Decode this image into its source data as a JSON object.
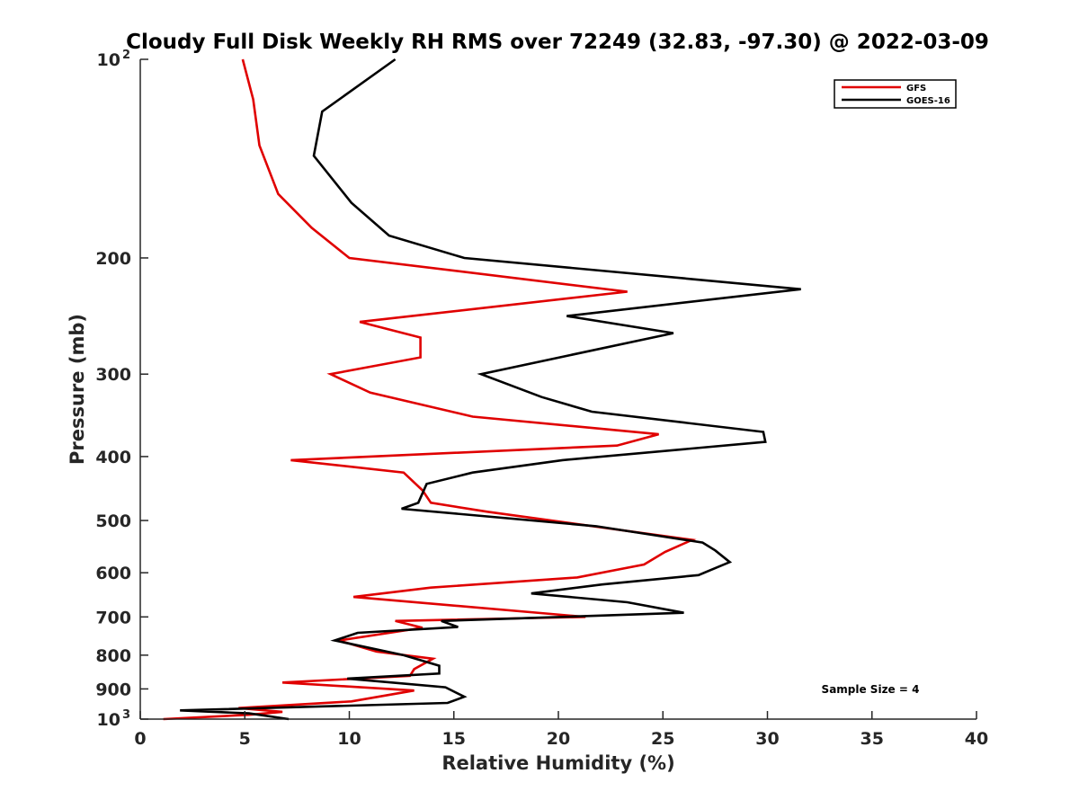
{
  "chart_data": {
    "type": "line",
    "title": "Cloudy Full Disk Weekly RH RMS over 72249 (32.83, -97.30) @ 2022-03-09",
    "xlabel": "Relative Humidity (%)",
    "ylabel": "Pressure (mb)",
    "xlim": [
      0,
      40
    ],
    "ylim": [
      1000,
      100
    ],
    "y_scale": "log",
    "y_reversed": true,
    "grid": false,
    "legend_position": "top-right",
    "x_ticks": [
      0,
      5,
      10,
      15,
      20,
      25,
      30,
      35,
      40
    ],
    "y_ticks": [
      {
        "value": 100,
        "label": "10",
        "sup": "2"
      },
      {
        "value": 200,
        "label": "200",
        "sup": ""
      },
      {
        "value": 300,
        "label": "300",
        "sup": ""
      },
      {
        "value": 400,
        "label": "400",
        "sup": ""
      },
      {
        "value": 500,
        "label": "500",
        "sup": ""
      },
      {
        "value": 600,
        "label": "600",
        "sup": ""
      },
      {
        "value": 700,
        "label": "700",
        "sup": ""
      },
      {
        "value": 800,
        "label": "800",
        "sup": ""
      },
      {
        "value": 900,
        "label": "900",
        "sup": ""
      },
      {
        "value": 1000,
        "label": "10",
        "sup": "3"
      }
    ],
    "series": [
      {
        "name": "GFS",
        "color": "#e00000",
        "points": [
          [
            4.9,
            100
          ],
          [
            5.4,
            115
          ],
          [
            5.7,
            135
          ],
          [
            6.6,
            160
          ],
          [
            8.2,
            180
          ],
          [
            10.0,
            200
          ],
          [
            23.3,
            225
          ],
          [
            10.5,
            250
          ],
          [
            13.4,
            264
          ],
          [
            13.4,
            283
          ],
          [
            9.1,
            300
          ],
          [
            11.0,
            320
          ],
          [
            15.9,
            348
          ],
          [
            24.8,
            370
          ],
          [
            22.8,
            385
          ],
          [
            7.2,
            405
          ],
          [
            12.6,
            423
          ],
          [
            13.5,
            450
          ],
          [
            13.9,
            470
          ],
          [
            16.6,
            485
          ],
          [
            26.4,
            535
          ],
          [
            25.1,
            558
          ],
          [
            24.1,
            583
          ],
          [
            20.9,
            610
          ],
          [
            13.9,
            632
          ],
          [
            10.2,
            653
          ],
          [
            21.3,
            700
          ],
          [
            12.2,
            710
          ],
          [
            13.5,
            727
          ],
          [
            9.5,
            760
          ],
          [
            11.3,
            790
          ],
          [
            14.0,
            810
          ],
          [
            13.1,
            840
          ],
          [
            12.9,
            860
          ],
          [
            6.8,
            880
          ],
          [
            13.1,
            905
          ],
          [
            10.1,
            940
          ],
          [
            4.7,
            962
          ],
          [
            6.8,
            975
          ],
          [
            5.2,
            985
          ],
          [
            1.1,
            1000
          ]
        ]
      },
      {
        "name": "GOES-16",
        "color": "#000000",
        "points": [
          [
            12.2,
            100
          ],
          [
            8.7,
            120
          ],
          [
            8.3,
            140
          ],
          [
            10.1,
            165
          ],
          [
            11.9,
            185
          ],
          [
            15.5,
            200
          ],
          [
            31.6,
            223
          ],
          [
            20.4,
            245
          ],
          [
            25.5,
            260
          ],
          [
            16.3,
            300
          ],
          [
            19.2,
            325
          ],
          [
            21.6,
            342
          ],
          [
            29.8,
            367
          ],
          [
            29.9,
            380
          ],
          [
            20.2,
            405
          ],
          [
            15.9,
            423
          ],
          [
            13.7,
            440
          ],
          [
            13.3,
            470
          ],
          [
            12.5,
            480
          ],
          [
            21.8,
            510
          ],
          [
            26.9,
            540
          ],
          [
            27.5,
            555
          ],
          [
            28.2,
            578
          ],
          [
            26.7,
            605
          ],
          [
            22.1,
            625
          ],
          [
            18.7,
            645
          ],
          [
            23.3,
            665
          ],
          [
            26.0,
            690
          ],
          [
            14.4,
            710
          ],
          [
            15.2,
            725
          ],
          [
            10.4,
            740
          ],
          [
            9.3,
            760
          ],
          [
            12.6,
            800
          ],
          [
            14.3,
            830
          ],
          [
            14.3,
            853
          ],
          [
            9.9,
            868
          ],
          [
            14.6,
            895
          ],
          [
            15.5,
            925
          ],
          [
            14.7,
            945
          ],
          [
            1.9,
            970
          ],
          [
            5.2,
            980
          ],
          [
            7.1,
            1000
          ]
        ]
      }
    ],
    "annotations": [
      {
        "text": "Sample Size = 4"
      }
    ]
  }
}
